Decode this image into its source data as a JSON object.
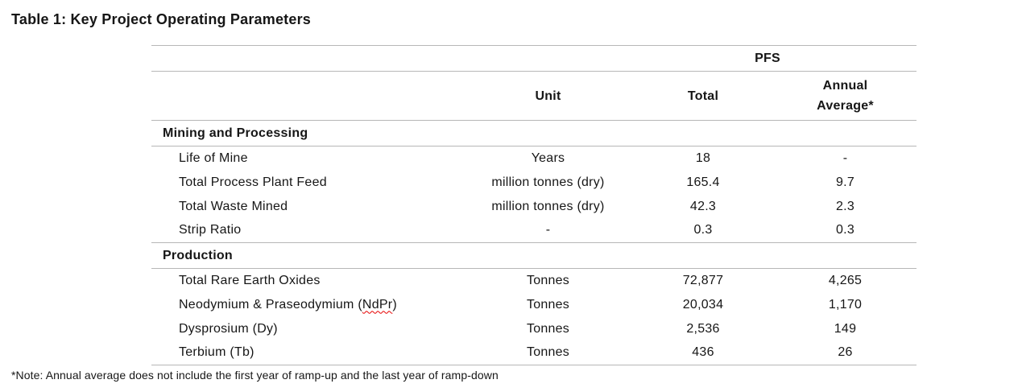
{
  "title": "Table 1: Key Project Operating Parameters",
  "table": {
    "group_header": "PFS",
    "column_headers": {
      "name": "",
      "unit": "Unit",
      "total": "Total",
      "annual": "Annual Average*"
    },
    "sections": [
      {
        "heading": "Mining and Processing",
        "rows": [
          {
            "name": "Life of Mine",
            "unit": "Years",
            "total": "18",
            "annual": "-"
          },
          {
            "name": "Total Process Plant Feed",
            "unit": "million tonnes (dry)",
            "total": "165.4",
            "annual": "9.7"
          },
          {
            "name": "Total Waste Mined",
            "unit": "million tonnes (dry)",
            "total": "42.3",
            "annual": "2.3"
          },
          {
            "name": "Strip Ratio",
            "unit": "-",
            "total": "0.3",
            "annual": "0.3"
          }
        ]
      },
      {
        "heading": "Production",
        "rows": [
          {
            "name": "Total Rare Earth Oxides",
            "unit": "Tonnes",
            "total": "72,877",
            "annual": "4,265"
          },
          {
            "name": "Neodymium & Praseodymium (NdPr)",
            "unit": "Tonnes",
            "total": "20,034",
            "annual": "1,170",
            "spellcheck_word": "NdPr"
          },
          {
            "name": "Dysprosium (Dy)",
            "unit": "Tonnes",
            "total": "2,536",
            "annual": "149"
          },
          {
            "name": "Terbium (Tb)",
            "unit": "Tonnes",
            "total": "436",
            "annual": "26"
          }
        ]
      }
    ]
  },
  "footnote": "*Note: Annual average does not include the first year of ramp-up and the last year of ramp-down",
  "colors": {
    "text": "#161616",
    "rule_line": "#b7b7b7",
    "spellcheck_underline": "#e60000",
    "background": "#ffffff"
  }
}
